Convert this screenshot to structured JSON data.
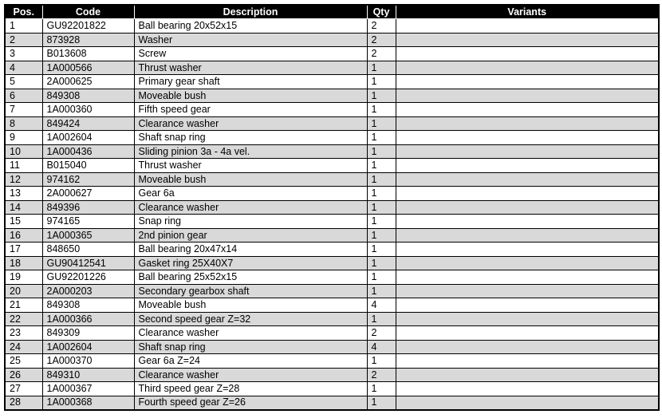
{
  "colors": {
    "header_bg": "#000000",
    "header_text": "#ffffff",
    "row_bg": "#ffffff",
    "row_alt_bg": "#d9d9d9",
    "border": "#000000"
  },
  "table": {
    "columns": [
      {
        "key": "pos",
        "label": "Pos."
      },
      {
        "key": "code",
        "label": "Code"
      },
      {
        "key": "description",
        "label": "Description"
      },
      {
        "key": "qty",
        "label": "Qty"
      },
      {
        "key": "variants",
        "label": "Variants"
      }
    ],
    "rows": [
      {
        "pos": "1",
        "code": "GU92201822",
        "description": "Ball bearing 20x52x15",
        "qty": "2",
        "variants": ""
      },
      {
        "pos": "2",
        "code": "873928",
        "description": "Washer",
        "qty": "2",
        "variants": ""
      },
      {
        "pos": "3",
        "code": "B013608",
        "description": "Screw",
        "qty": "2",
        "variants": ""
      },
      {
        "pos": "4",
        "code": "1A000566",
        "description": "Thrust washer",
        "qty": "1",
        "variants": ""
      },
      {
        "pos": "5",
        "code": "2A000625",
        "description": "Primary gear shaft",
        "qty": "1",
        "variants": ""
      },
      {
        "pos": "6",
        "code": "849308",
        "description": "Moveable bush",
        "qty": "1",
        "variants": ""
      },
      {
        "pos": "7",
        "code": "1A000360",
        "description": "Fifth speed gear",
        "qty": "1",
        "variants": ""
      },
      {
        "pos": "8",
        "code": "849424",
        "description": "Clearance washer",
        "qty": "1",
        "variants": ""
      },
      {
        "pos": "9",
        "code": "1A002604",
        "description": "Shaft snap ring",
        "qty": "1",
        "variants": ""
      },
      {
        "pos": "10",
        "code": "1A000436",
        "description": "Sliding pinion 3a - 4a vel.",
        "qty": "1",
        "variants": ""
      },
      {
        "pos": "11",
        "code": "B015040",
        "description": "Thrust washer",
        "qty": "1",
        "variants": ""
      },
      {
        "pos": "12",
        "code": "974162",
        "description": "Moveable bush",
        "qty": "1",
        "variants": ""
      },
      {
        "pos": "13",
        "code": "2A000627",
        "description": "Gear 6a",
        "qty": "1",
        "variants": ""
      },
      {
        "pos": "14",
        "code": "849396",
        "description": "Clearance washer",
        "qty": "1",
        "variants": ""
      },
      {
        "pos": "15",
        "code": "974165",
        "description": "Snap ring",
        "qty": "1",
        "variants": ""
      },
      {
        "pos": "16",
        "code": "1A000365",
        "description": "2nd pinion gear",
        "qty": "1",
        "variants": ""
      },
      {
        "pos": "17",
        "code": "848650",
        "description": "Ball bearing 20x47x14",
        "qty": "1",
        "variants": ""
      },
      {
        "pos": "18",
        "code": "GU90412541",
        "description": "Gasket ring 25X40X7",
        "qty": "1",
        "variants": ""
      },
      {
        "pos": "19",
        "code": "GU92201226",
        "description": "Ball bearing 25x52x15",
        "qty": "1",
        "variants": ""
      },
      {
        "pos": "20",
        "code": "2A000203",
        "description": "Secondary gearbox shaft",
        "qty": "1",
        "variants": ""
      },
      {
        "pos": "21",
        "code": "849308",
        "description": "Moveable bush",
        "qty": "4",
        "variants": ""
      },
      {
        "pos": "22",
        "code": "1A000366",
        "description": "Second speed gear Z=32",
        "qty": "1",
        "variants": ""
      },
      {
        "pos": "23",
        "code": "849309",
        "description": "Clearance washer",
        "qty": "2",
        "variants": ""
      },
      {
        "pos": "24",
        "code": "1A002604",
        "description": "Shaft snap ring",
        "qty": "4",
        "variants": ""
      },
      {
        "pos": "25",
        "code": "1A000370",
        "description": "Gear 6a Z=24",
        "qty": "1",
        "variants": ""
      },
      {
        "pos": "26",
        "code": "849310",
        "description": "Clearance washer",
        "qty": "2",
        "variants": ""
      },
      {
        "pos": "27",
        "code": "1A000367",
        "description": "Third speed gear Z=28",
        "qty": "1",
        "variants": ""
      },
      {
        "pos": "28",
        "code": "1A000368",
        "description": "Fourth speed gear Z=26",
        "qty": "1",
        "variants": ""
      }
    ]
  }
}
